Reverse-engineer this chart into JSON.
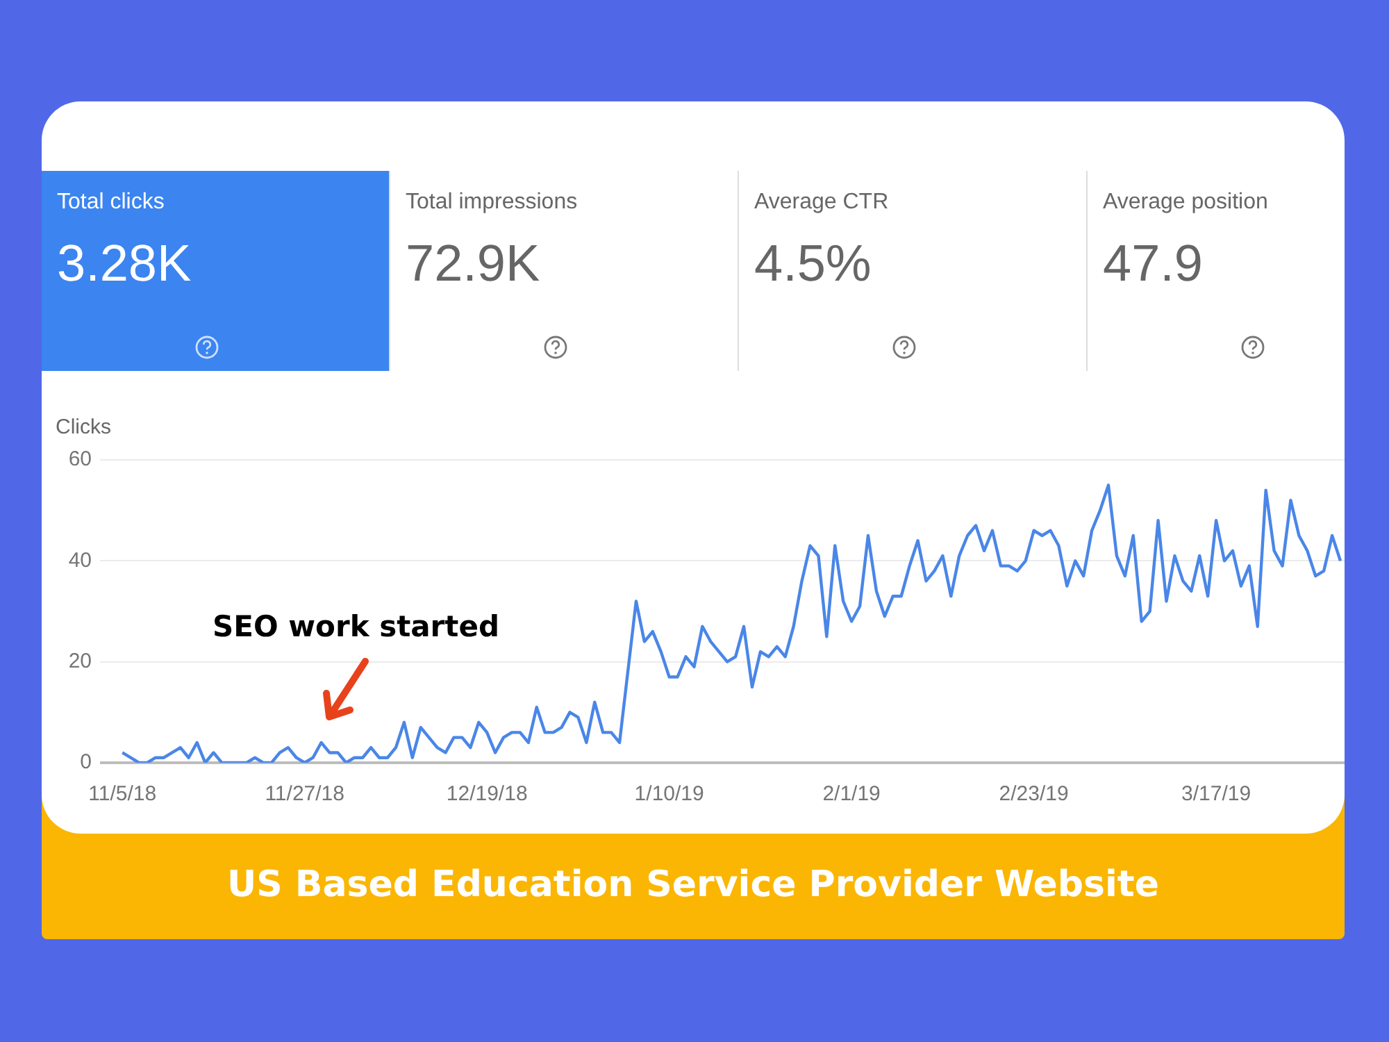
{
  "chart_data": [
    {
      "type": "other",
      "annotations": [
        "Total clicks",
        "3.28K",
        "Total impressions",
        "72.9K",
        "Average CTR",
        "4.5%",
        "Average position",
        "47.9"
      ]
    },
    {
      "type": "line",
      "title": "US Based Education Service Provider Website",
      "ylabel": "Clicks",
      "color": "#4a86e8",
      "ylim": [
        0,
        60
      ],
      "yticks": [
        0,
        20,
        40,
        60
      ],
      "grid": "y",
      "legend": false,
      "marker": "none",
      "line_style": "solid",
      "annotations": [
        "SEO work started"
      ],
      "categories": [
        "11/5/18",
        null,
        null,
        null,
        null,
        null,
        null,
        null,
        null,
        null,
        null,
        null,
        null,
        null,
        null,
        null,
        null,
        null,
        null,
        null,
        null,
        null,
        "11/27/18",
        null,
        null,
        null,
        null,
        null,
        null,
        null,
        null,
        null,
        null,
        null,
        null,
        null,
        null,
        null,
        null,
        null,
        null,
        null,
        null,
        null,
        "12/19/18",
        null,
        null,
        null,
        null,
        null,
        null,
        null,
        null,
        null,
        null,
        null,
        null,
        null,
        null,
        null,
        null,
        null,
        null,
        null,
        null,
        null,
        "1/10/19",
        null,
        null,
        null,
        null,
        null,
        null,
        null,
        null,
        null,
        null,
        null,
        null,
        null,
        null,
        null,
        null,
        null,
        null,
        null,
        null,
        null,
        "2/1/19",
        null,
        null,
        null,
        null,
        null,
        null,
        null,
        null,
        null,
        null,
        null,
        null,
        null,
        null,
        null,
        null,
        null,
        null,
        null,
        null,
        null,
        "2/23/19",
        null,
        null,
        null,
        null,
        null,
        null,
        null,
        null,
        null,
        null,
        null,
        null,
        null,
        null,
        null,
        null,
        null,
        null,
        null,
        null,
        null,
        "3/17/19",
        null,
        null,
        null,
        null,
        null,
        null,
        null,
        null,
        null,
        null,
        null,
        null,
        null,
        null,
        null
      ],
      "values": [
        2,
        1,
        0,
        0,
        1,
        1,
        2,
        3,
        1,
        4,
        0,
        2,
        0,
        0,
        0,
        0,
        1,
        0,
        0,
        2,
        3,
        1,
        0,
        1,
        4,
        2,
        2,
        0,
        1,
        1,
        3,
        1,
        1,
        3,
        8,
        1,
        7,
        5,
        3,
        2,
        5,
        5,
        3,
        8,
        6,
        2,
        5,
        6,
        6,
        4,
        11,
        6,
        6,
        7,
        10,
        9,
        4,
        12,
        6,
        6,
        4,
        18,
        32,
        24,
        26,
        22,
        17,
        17,
        21,
        19,
        27,
        24,
        22,
        20,
        21,
        27,
        15,
        22,
        21,
        23,
        21,
        27,
        36,
        43,
        41,
        25,
        43,
        32,
        28,
        31,
        45,
        34,
        29,
        33,
        33,
        39,
        44,
        36,
        38,
        41,
        33,
        41,
        45,
        47,
        42,
        46,
        39,
        39,
        38,
        40,
        46,
        45,
        46,
        43,
        35,
        40,
        37,
        46,
        50,
        55,
        41,
        37,
        45,
        28,
        30,
        48,
        32,
        41,
        36,
        34,
        41,
        33,
        48,
        40,
        42,
        35,
        39,
        27,
        54,
        42,
        39,
        52,
        45,
        42,
        37,
        38,
        45,
        40
      ]
    }
  ]
}
